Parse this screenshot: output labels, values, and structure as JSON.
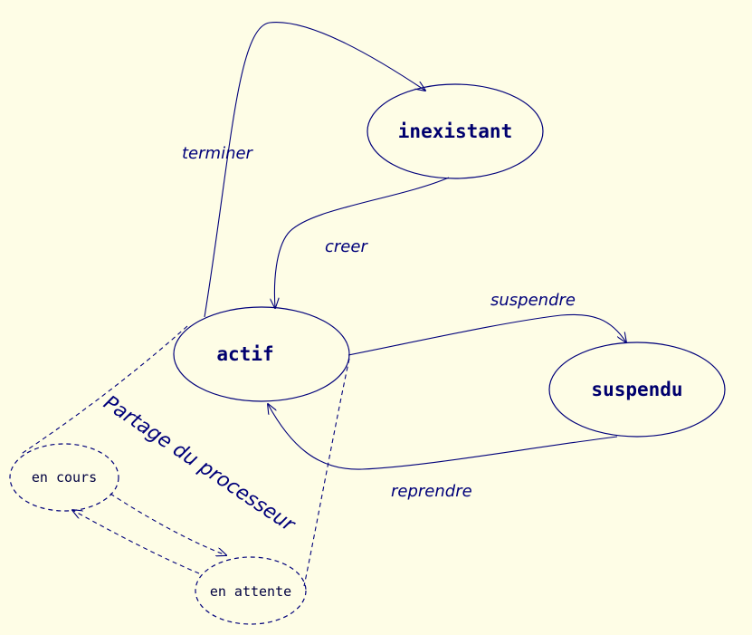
{
  "diagram": {
    "states": {
      "inexistant": "inexistant",
      "actif": "actif",
      "suspendu": "suspendu"
    },
    "sub_states": {
      "en_cours": "en cours",
      "en_attente": "en attente"
    },
    "transitions": {
      "terminer": "terminer",
      "creer": "creer",
      "suspendre": "suspendre",
      "reprendre": "reprendre"
    },
    "group_label": "Partage du processeur"
  },
  "colors": {
    "background": "#fefde6",
    "stroke": "#00007a",
    "text": "#00006e"
  }
}
